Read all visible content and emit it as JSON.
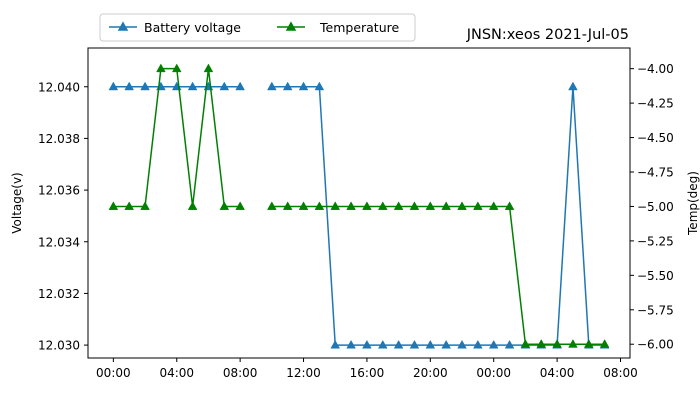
{
  "chart_data": {
    "type": "line",
    "title": "JNSN:xeos 2021-Jul-05",
    "ylabel_left": "Voltage(v)",
    "ylabel_right": "Temp(deg)",
    "xlabel": "",
    "x_unit": "hours since 2021-07-05 00:00",
    "x_ticks": [
      0,
      4,
      8,
      12,
      16,
      20,
      24,
      28,
      32
    ],
    "x_tick_labels": [
      "00:00",
      "04:00",
      "08:00",
      "12:00",
      "16:00",
      "20:00",
      "00:00",
      "04:00",
      "08:00"
    ],
    "xlim": [
      -1.6,
      32.6
    ],
    "left_ylim": [
      12.0295,
      12.0415
    ],
    "left_ticks": [
      12.03,
      12.032,
      12.034,
      12.036,
      12.038,
      12.04
    ],
    "left_tick_labels": [
      "12.030",
      "12.032",
      "12.034",
      "12.036",
      "12.038",
      "12.040"
    ],
    "right_ylim": [
      -6.1,
      -3.85
    ],
    "right_ticks": [
      -6.0,
      -5.75,
      -5.5,
      -5.25,
      -5.0,
      -4.75,
      -4.5,
      -4.25,
      -4.0
    ],
    "right_tick_labels": [
      "−6.00",
      "−5.75",
      "−5.50",
      "−5.25",
      "−5.00",
      "−4.75",
      "−4.50",
      "−4.25",
      "−4.00"
    ],
    "legend_position": "top-left",
    "series": [
      {
        "name": "Battery voltage",
        "axis": "left",
        "color": "#1f77b4",
        "marker": "triangle-up",
        "segments": [
          [
            [
              0,
              12.04
            ],
            [
              1,
              12.04
            ],
            [
              2,
              12.04
            ],
            [
              3,
              12.04
            ],
            [
              4,
              12.04
            ],
            [
              5,
              12.04
            ],
            [
              6,
              12.04
            ],
            [
              7,
              12.04
            ],
            [
              8,
              12.04
            ]
          ],
          [
            [
              10,
              12.04
            ],
            [
              11,
              12.04
            ],
            [
              12,
              12.04
            ],
            [
              13,
              12.04
            ],
            [
              14,
              12.03
            ],
            [
              15,
              12.03
            ],
            [
              16,
              12.03
            ],
            [
              17,
              12.03
            ],
            [
              18,
              12.03
            ],
            [
              19,
              12.03
            ],
            [
              20,
              12.03
            ],
            [
              21,
              12.03
            ],
            [
              22,
              12.03
            ],
            [
              23,
              12.03
            ],
            [
              24,
              12.03
            ],
            [
              25,
              12.03
            ],
            [
              26,
              12.03
            ],
            [
              27,
              12.03
            ],
            [
              28,
              12.03
            ],
            [
              29,
              12.04
            ],
            [
              30,
              12.03
            ],
            [
              31,
              12.03
            ]
          ]
        ]
      },
      {
        "name": "Temperature",
        "axis": "right",
        "color": "#008000",
        "marker": "triangle-up",
        "segments": [
          [
            [
              0,
              -5
            ],
            [
              1,
              -5
            ],
            [
              2,
              -5
            ],
            [
              3,
              -4
            ],
            [
              4,
              -4
            ],
            [
              5,
              -5
            ],
            [
              6,
              -4
            ],
            [
              7,
              -5
            ],
            [
              8,
              -5
            ]
          ],
          [
            [
              10,
              -5
            ],
            [
              11,
              -5
            ],
            [
              12,
              -5
            ],
            [
              13,
              -5
            ],
            [
              14,
              -5
            ],
            [
              15,
              -5
            ],
            [
              16,
              -5
            ],
            [
              17,
              -5
            ],
            [
              18,
              -5
            ],
            [
              19,
              -5
            ],
            [
              20,
              -5
            ],
            [
              21,
              -5
            ],
            [
              22,
              -5
            ],
            [
              23,
              -5
            ],
            [
              24,
              -5
            ],
            [
              25,
              -5
            ],
            [
              26,
              -6
            ],
            [
              27,
              -6
            ],
            [
              28,
              -6
            ],
            [
              29,
              -6
            ],
            [
              30,
              -6
            ],
            [
              31,
              -6
            ]
          ]
        ]
      }
    ]
  }
}
